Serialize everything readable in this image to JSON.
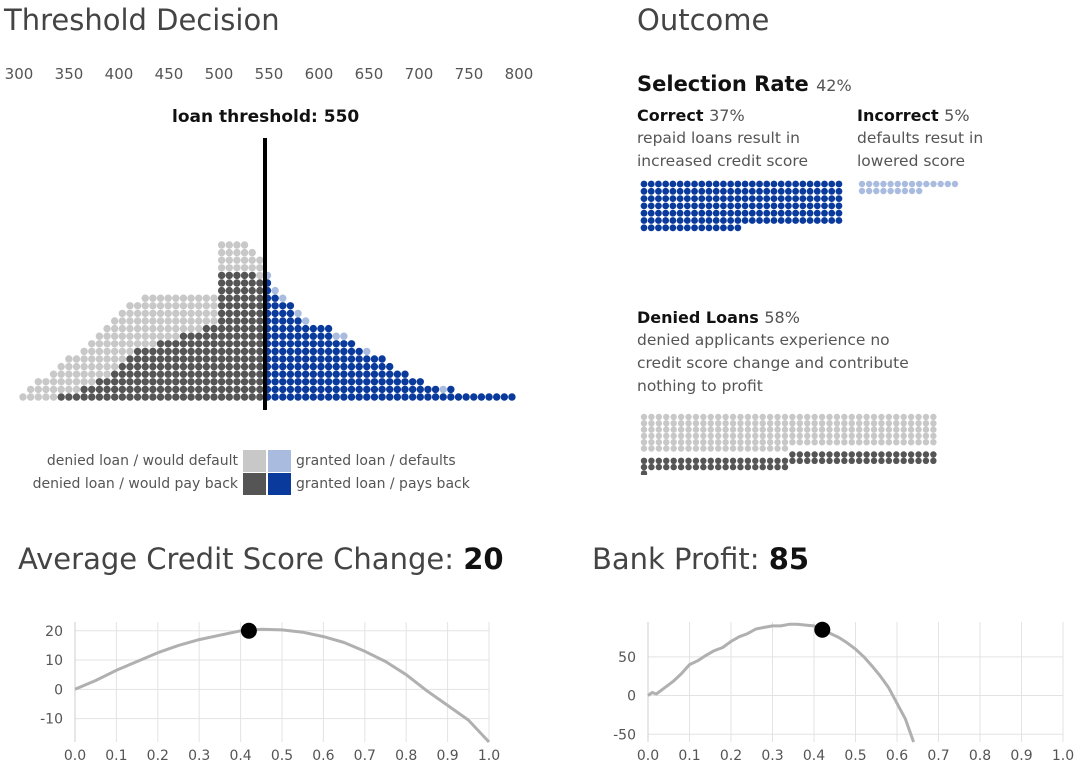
{
  "threshold_panel": {
    "title": "Threshold Decision",
    "scale_labels": [
      "300",
      "350",
      "400",
      "450",
      "500",
      "550",
      "600",
      "650",
      "700",
      "750",
      "800"
    ],
    "threshold_label": "loan threshold: 550",
    "threshold_value": 550,
    "legend": {
      "denied_default": "denied loan / would default",
      "denied_payback": "denied loan / would pay back",
      "granted_default": "granted loan / defaults",
      "granted_payback": "granted loan / pays back"
    },
    "colors": {
      "denied_default": "#c8c8c8",
      "denied_payback": "#555555",
      "granted_default": "#a9bce0",
      "granted_payback": "#0a3b9c"
    }
  },
  "outcome_panel": {
    "title": "Outcome",
    "selection_rate": {
      "label": "Selection Rate",
      "value": "42%"
    },
    "correct": {
      "label": "Correct",
      "value": "37%",
      "desc1": "repaid loans result in",
      "desc2": "increased credit score"
    },
    "incorrect": {
      "label": "Incorrect",
      "value": "5%",
      "desc1": "defaults resut in",
      "desc2": "lowered score"
    },
    "denied": {
      "label": "Denied Loans",
      "value": "58%",
      "desc1": "denied applicants experience no",
      "desc2": "credit score change and contribute",
      "desc3": "nothing to profit"
    }
  },
  "credit_panel": {
    "title_prefix": "Average Credit Score Change: ",
    "title_value": "20"
  },
  "profit_panel": {
    "title_prefix": "Bank Profit: ",
    "title_value": "85"
  },
  "chart_data": [
    {
      "type": "line",
      "title": "Average Credit Score Change: 20",
      "xlabel": "",
      "ylabel": "",
      "xlim": [
        0,
        1
      ],
      "ylim": [
        -18,
        23
      ],
      "x_ticks": [
        "0.0",
        "0.1",
        "0.2",
        "0.3",
        "0.4",
        "0.5",
        "0.6",
        "0.7",
        "0.8",
        "0.9",
        "1.0"
      ],
      "y_ticks": [
        "20",
        "10",
        "0",
        "-10"
      ],
      "grid": true,
      "series": [
        {
          "x": [
            0.0,
            0.05,
            0.1,
            0.15,
            0.2,
            0.25,
            0.3,
            0.35,
            0.4,
            0.45,
            0.5,
            0.55,
            0.6,
            0.65,
            0.7,
            0.75,
            0.8,
            0.85,
            0.9,
            0.95,
            1.0
          ],
          "y": [
            0,
            3,
            6.5,
            9.5,
            12.5,
            15,
            17,
            18.5,
            20,
            20.5,
            20.3,
            19.5,
            18,
            16,
            13,
            9.5,
            5,
            -0.5,
            -5.5,
            -10.5,
            -18
          ]
        }
      ],
      "marker": {
        "x": 0.42,
        "y": 20
      }
    },
    {
      "type": "line",
      "title": "Bank Profit: 85",
      "xlabel": "",
      "ylabel": "",
      "xlim": [
        0,
        1
      ],
      "ylim": [
        -60,
        95
      ],
      "x_ticks": [
        "0.0",
        "0.1",
        "0.2",
        "0.3",
        "0.4",
        "0.5",
        "0.6",
        "0.7",
        "0.8",
        "0.9",
        "1.0"
      ],
      "y_ticks": [
        "50",
        "0",
        "-50"
      ],
      "grid": true,
      "series": [
        {
          "x": [
            0.0,
            0.01,
            0.02,
            0.04,
            0.06,
            0.08,
            0.1,
            0.12,
            0.14,
            0.16,
            0.18,
            0.2,
            0.22,
            0.24,
            0.26,
            0.28,
            0.3,
            0.32,
            0.34,
            0.36,
            0.38,
            0.4,
            0.42,
            0.44,
            0.46,
            0.48,
            0.5,
            0.52,
            0.54,
            0.56,
            0.58,
            0.6,
            0.62,
            0.64
          ],
          "y": [
            0,
            4,
            2,
            10,
            18,
            28,
            40,
            45,
            52,
            58,
            62,
            70,
            76,
            80,
            86,
            88,
            90,
            90,
            92,
            92,
            91,
            90,
            85,
            80,
            75,
            68,
            60,
            50,
            38,
            25,
            10,
            -10,
            -30,
            -60
          ]
        }
      ],
      "marker": {
        "x": 0.42,
        "y": 85
      }
    }
  ]
}
